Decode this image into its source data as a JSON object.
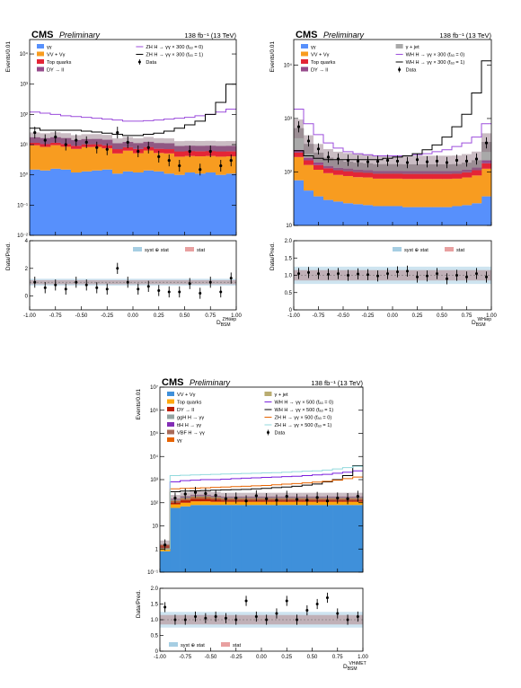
{
  "chart_data": [
    {
      "type": "bar",
      "cms_label": "CMS",
      "prelim_label": "Preliminary",
      "lumi_label": "138 fb⁻¹ (13 TeV)",
      "ylabel": "Events/0.01",
      "ratio_ylabel": "Data/Pred.",
      "xlabel_main": "D",
      "xlabel_sub": "BSM",
      "xlabel_sup": "ZHℓℓep",
      "log_y": true,
      "ylim": [
        0.01,
        30000
      ],
      "yticks": [
        {
          "v": 0.01,
          "t": "10⁻²"
        },
        {
          "v": 0.1,
          "t": "10⁻¹"
        },
        {
          "v": 1,
          "t": "10⁰"
        },
        {
          "v": 10,
          "t": "10¹"
        },
        {
          "v": 100,
          "t": "10²"
        },
        {
          "v": 1000,
          "t": "10³"
        },
        {
          "v": 10000,
          "t": "10⁴"
        }
      ],
      "ratio_ylim": [
        -1,
        4
      ],
      "ratio_yticks": [
        {
          "v": 0,
          "t": "0"
        },
        {
          "v": 2,
          "t": "2"
        },
        {
          "v": 4,
          "t": "4"
        }
      ],
      "xlim": [
        -1,
        1
      ],
      "xticks": [
        "-1.00",
        "-0.75",
        "-0.50",
        "-0.25",
        "0.00",
        "0.25",
        "0.50",
        "0.75",
        "1.00"
      ],
      "legend": {
        "stack": [
          {
            "name": "γγ",
            "color": "#5790fc"
          },
          {
            "name": "VV + Vγ",
            "color": "#f89c20"
          },
          {
            "name": "Top quarks",
            "color": "#e42536"
          },
          {
            "name": "DY → ll",
            "color": "#964a8b"
          }
        ],
        "lines": [
          {
            "name": "ZH H → γγ × 300 (fₐ₃ = 0)",
            "color": "#9c4ddc"
          },
          {
            "name": "ZH H → γγ × 300 (fₐ₃ = 1)",
            "color": "#000000"
          }
        ],
        "data": "Data",
        "ratio_syst": "syst ⊕ stat",
        "ratio_stat": "stat"
      },
      "stack_series": [
        {
          "name": "γγ",
          "color": "#5790fc",
          "values": [
            1.5,
            1.4,
            1.6,
            1.5,
            1.2,
            1.3,
            1.4,
            1.5,
            1.1,
            1.3,
            1.2,
            1.4,
            1.3,
            1.1,
            1.0,
            1.2,
            1.1,
            1.2,
            1.0,
            1.1
          ]
        },
        {
          "name": "VV + Vγ",
          "color": "#f89c20",
          "values": [
            8,
            7,
            8,
            7,
            6,
            7,
            7,
            6,
            4,
            5,
            4,
            5,
            4,
            4,
            3,
            3,
            3,
            3,
            3,
            3
          ]
        },
        {
          "name": "Top quarks",
          "color": "#e42536",
          "values": [
            2,
            2,
            2,
            2,
            2,
            2,
            2,
            2,
            2,
            2,
            2,
            2,
            2,
            2,
            2,
            2,
            2,
            2,
            2,
            2
          ]
        },
        {
          "name": "DY → ll",
          "color": "#964a8b",
          "values": [
            6,
            6,
            6,
            6,
            5,
            5,
            5,
            5,
            4,
            4,
            4,
            4,
            4,
            4,
            3,
            3,
            3,
            3,
            3,
            3
          ]
        }
      ],
      "signal_lines": [
        {
          "name": "ZH f0",
          "color": "#9c4ddc",
          "values": [
            120,
            110,
            100,
            90,
            85,
            80,
            75,
            70,
            65,
            60,
            60,
            62,
            65,
            70,
            75,
            80,
            90,
            100,
            120,
            150
          ]
        },
        {
          "name": "ZH f1",
          "color": "#000000",
          "values": [
            35,
            30,
            30,
            30,
            30,
            28,
            26,
            24,
            22,
            20,
            20,
            22,
            24,
            28,
            35,
            45,
            60,
            100,
            250,
            1000
          ]
        }
      ],
      "data_points": [
        25,
        14,
        18,
        10,
        14,
        12,
        8,
        7,
        25,
        12,
        6,
        8,
        4,
        3,
        2,
        6,
        1.5,
        6,
        2,
        3
      ],
      "ratio_points": [
        1.0,
        0.6,
        0.8,
        0.5,
        1.0,
        0.8,
        0.6,
        0.5,
        2.0,
        1.0,
        0.5,
        0.7,
        0.4,
        0.3,
        0.3,
        0.9,
        0.2,
        1.0,
        0.3,
        1.3
      ]
    },
    {
      "type": "bar",
      "cms_label": "CMS",
      "prelim_label": "Preliminary",
      "lumi_label": "138 fb⁻¹ (13 TeV)",
      "ylabel": "Events/0.01",
      "ratio_ylabel": "Data/Pred.",
      "xlabel_main": "D",
      "xlabel_sub": "BSM",
      "xlabel_sup": "WHℓep",
      "log_y": true,
      "ylim": [
        10,
        30000
      ],
      "yticks": [
        {
          "v": 10,
          "t": "10"
        },
        {
          "v": 100,
          "t": "10²"
        },
        {
          "v": 1000,
          "t": "10³"
        },
        {
          "v": 10000,
          "t": "10⁴"
        }
      ],
      "ratio_ylim": [
        0,
        2
      ],
      "ratio_yticks": [
        {
          "v": 0,
          "t": "0"
        },
        {
          "v": 0.5,
          "t": "0.5"
        },
        {
          "v": 1,
          "t": "1.0"
        },
        {
          "v": 1.5,
          "t": "1.5"
        },
        {
          "v": 2,
          "t": "2.0"
        }
      ],
      "xlim": [
        -1,
        1
      ],
      "xticks": [
        "-1.00",
        "-0.75",
        "-0.50",
        "-0.25",
        "0.00",
        "0.25",
        "0.50",
        "0.75",
        "1.00"
      ],
      "legend": {
        "stack": [
          {
            "name": "γγ",
            "color": "#5790fc"
          },
          {
            "name": "VV + Vγ",
            "color": "#f89c20"
          },
          {
            "name": "Top quarks",
            "color": "#e42536"
          },
          {
            "name": "DY → ll",
            "color": "#964a8b"
          }
        ],
        "stack2": [
          {
            "name": "γ + jet",
            "color": "#a9a9a9"
          }
        ],
        "lines": [
          {
            "name": "WH H → γγ × 300 (fₐ₃ = 0)",
            "color": "#9c4ddc"
          },
          {
            "name": "WH H → γγ × 300 (fₐ₃ = 1)",
            "color": "#000000"
          }
        ],
        "data": "Data",
        "ratio_syst": "syst ⊕ stat",
        "ratio_stat": "stat"
      },
      "stack_series": [
        {
          "name": "γγ",
          "color": "#5790fc",
          "values": [
            70,
            45,
            35,
            30,
            28,
            26,
            25,
            24,
            23,
            23,
            23,
            22,
            22,
            22,
            22,
            22,
            23,
            24,
            26,
            35
          ]
        },
        {
          "name": "VV + Vγ",
          "color": "#f89c20",
          "values": [
            120,
            90,
            75,
            65,
            60,
            58,
            55,
            55,
            52,
            52,
            52,
            52,
            52,
            52,
            52,
            52,
            52,
            55,
            60,
            80
          ]
        },
        {
          "name": "Top quarks",
          "color": "#e42536",
          "values": [
            40,
            30,
            25,
            22,
            20,
            20,
            20,
            19,
            19,
            19,
            19,
            19,
            19,
            19,
            19,
            19,
            19,
            20,
            22,
            30
          ]
        },
        {
          "name": "DY → ll",
          "color": "#964a8b",
          "values": [
            30,
            20,
            15,
            13,
            12,
            12,
            11,
            11,
            11,
            11,
            11,
            11,
            11,
            11,
            11,
            11,
            11,
            12,
            13,
            20
          ]
        },
        {
          "name": "γ + jet",
          "color": "#a9a9a9",
          "values": [
            400,
            150,
            80,
            55,
            45,
            40,
            38,
            36,
            35,
            35,
            35,
            35,
            35,
            35,
            35,
            35,
            35,
            38,
            45,
            200
          ]
        }
      ],
      "signal_lines": [
        {
          "name": "WH f0",
          "color": "#9c4ddc",
          "values": [
            1500,
            800,
            500,
            350,
            280,
            240,
            220,
            210,
            200,
            200,
            200,
            200,
            210,
            220,
            240,
            260,
            300,
            350,
            450,
            800
          ]
        },
        {
          "name": "WH f1",
          "color": "#000000",
          "values": [
            250,
            200,
            180,
            170,
            170,
            170,
            170,
            170,
            170,
            180,
            190,
            200,
            220,
            260,
            320,
            450,
            700,
            1200,
            3000,
            12000
          ]
        }
      ],
      "data_points": [
        700,
        380,
        270,
        190,
        175,
        165,
        160,
        155,
        158,
        165,
        160,
        150,
        170,
        155,
        160,
        150,
        165,
        160,
        175,
        350
      ],
      "ratio_points": [
        1.05,
        1.08,
        1.05,
        1.03,
        1.05,
        1.0,
        1.04,
        1.02,
        0.98,
        1.05,
        1.1,
        1.12,
        0.95,
        0.98,
        1.05,
        0.9,
        1.0,
        0.95,
        1.05,
        0.95
      ]
    },
    {
      "type": "bar",
      "cms_label": "CMS",
      "prelim_label": "Preliminary",
      "lumi_label": "138 fb⁻¹ (13 TeV)",
      "ylabel": "Events/0.01",
      "ratio_ylabel": "Data/Pred.",
      "xlabel_main": "D",
      "xlabel_sub": "BSM",
      "xlabel_sup": "VHℓMET",
      "log_y": true,
      "ylim": [
        0.1,
        10000000
      ],
      "yticks": [
        {
          "v": 0.1,
          "t": "10⁻¹"
        },
        {
          "v": 1,
          "t": "1"
        },
        {
          "v": 10,
          "t": "10"
        },
        {
          "v": 100,
          "t": "10²"
        },
        {
          "v": 1000,
          "t": "10³"
        },
        {
          "v": 10000,
          "t": "10⁴"
        },
        {
          "v": 100000,
          "t": "10⁵"
        },
        {
          "v": 1000000,
          "t": "10⁶"
        },
        {
          "v": 10000000,
          "t": "10⁷"
        }
      ],
      "ratio_ylim": [
        0,
        2
      ],
      "ratio_yticks": [
        {
          "v": 0,
          "t": "0"
        },
        {
          "v": 0.5,
          "t": "0.5"
        },
        {
          "v": 1,
          "t": "1.0"
        },
        {
          "v": 1.5,
          "t": "1.5"
        },
        {
          "v": 2,
          "t": "2.0"
        }
      ],
      "xlim": [
        -1,
        1
      ],
      "xticks": [
        "-1.00",
        "-0.75",
        "-0.50",
        "-0.25",
        "0.00",
        "0.25",
        "0.50",
        "0.75",
        "1.00"
      ],
      "legend": {
        "stack": [
          {
            "name": "VV + Vγ",
            "color": "#3f90da"
          },
          {
            "name": "Top quarks",
            "color": "#ffa90e"
          },
          {
            "name": "DY → ll",
            "color": "#bd1f01"
          },
          {
            "name": "ggH H → γγ",
            "color": "#94a4a2"
          },
          {
            "name": "ttH H → γγ",
            "color": "#832db6"
          },
          {
            "name": "VBF H → γγ",
            "color": "#a96b59"
          },
          {
            "name": "γγ",
            "color": "#e76300"
          }
        ],
        "stack2": [
          {
            "name": "γ + jet",
            "color": "#b9ac70"
          }
        ],
        "lines": [
          {
            "name": "WH H → γγ × 500 (fₐ₃ = 0)",
            "color": "#7a21dd"
          },
          {
            "name": "WH H → γγ × 500 (fₐ₃ = 1)",
            "color": "#000000"
          },
          {
            "name": "ZH H → γγ × 500 (fₐ₃ = 0)",
            "color": "#e76300"
          },
          {
            "name": "ZH H → γγ × 500 (fₐ₃ = 1)",
            "color": "#92dadd"
          }
        ],
        "data": "Data",
        "ratio_syst": "syst ⊕ stat",
        "ratio_stat": "stat"
      },
      "stack_series": [
        {
          "name": "VV + Vγ",
          "color": "#3f90da",
          "values": [
            0.8,
            60,
            70,
            80,
            80,
            80,
            80,
            80,
            80,
            80,
            80,
            80,
            80,
            80,
            80,
            80,
            80,
            80,
            80,
            80
          ]
        },
        {
          "name": "Top quarks",
          "color": "#ffa90e",
          "values": [
            0.3,
            25,
            30,
            35,
            35,
            30,
            30,
            30,
            30,
            30,
            30,
            30,
            30,
            30,
            30,
            30,
            30,
            30,
            30,
            30
          ]
        },
        {
          "name": "DY → ll",
          "color": "#bd1f01",
          "values": [
            0.3,
            20,
            30,
            35,
            35,
            30,
            25,
            25,
            25,
            25,
            25,
            25,
            25,
            25,
            25,
            25,
            25,
            25,
            25,
            25
          ]
        },
        {
          "name": "γγ",
          "color": "#e76300",
          "values": [
            0.1,
            15,
            20,
            25,
            25,
            20,
            15,
            15,
            15,
            15,
            15,
            15,
            15,
            15,
            15,
            15,
            15,
            15,
            15,
            15
          ]
        },
        {
          "name": "γ + jet",
          "color": "#b9ac70",
          "values": [
            0.05,
            10,
            15,
            15,
            15,
            15,
            10,
            10,
            10,
            10,
            10,
            10,
            10,
            10,
            10,
            10,
            10,
            10,
            10,
            10
          ]
        },
        {
          "name": "ggH H → γγ",
          "color": "#94a4a2",
          "values": [
            0.02,
            8,
            10,
            12,
            12,
            10,
            10,
            10,
            10,
            10,
            10,
            10,
            10,
            10,
            10,
            10,
            10,
            10,
            10,
            10
          ]
        },
        {
          "name": "ttH H → γγ",
          "color": "#832db6",
          "values": [
            0.02,
            6,
            8,
            10,
            10,
            8,
            8,
            8,
            8,
            8,
            8,
            8,
            8,
            8,
            8,
            8,
            8,
            8,
            8,
            8
          ]
        },
        {
          "name": "VBF H → γγ",
          "color": "#a96b59",
          "values": [
            0.02,
            6,
            8,
            10,
            10,
            8,
            8,
            8,
            8,
            8,
            8,
            8,
            8,
            8,
            8,
            8,
            8,
            8,
            8,
            8
          ]
        }
      ],
      "signal_lines": [
        {
          "name": "WH f0",
          "color": "#7a21dd",
          "values": [
            1,
            800,
            900,
            950,
            1000,
            1000,
            1050,
            1100,
            1150,
            1200,
            1250,
            1300,
            1350,
            1400,
            1500,
            1600,
            1700,
            1900,
            2100,
            2400
          ]
        },
        {
          "name": "WH f1",
          "color": "#000000",
          "values": [
            1,
            300,
            320,
            330,
            340,
            350,
            360,
            370,
            380,
            400,
            420,
            450,
            480,
            520,
            580,
            650,
            800,
            1000,
            1500,
            4000
          ]
        },
        {
          "name": "ZH f0",
          "color": "#e76300",
          "values": [
            1,
            400,
            420,
            430,
            440,
            460,
            480,
            500,
            520,
            540,
            560,
            600,
            640,
            680,
            720,
            780,
            850,
            950,
            1100,
            1300
          ]
        },
        {
          "name": "ZH f1",
          "color": "#92dadd",
          "values": [
            1,
            1500,
            1550,
            1600,
            1650,
            1700,
            1750,
            1800,
            1850,
            1900,
            1950,
            2000,
            2100,
            2200,
            2300,
            2400,
            2600,
            2900,
            3300,
            3800
          ]
        }
      ],
      "data_points": [
        1.5,
        160,
        240,
        280,
        250,
        210,
        150,
        160,
        120,
        200,
        150,
        130,
        190,
        140,
        130,
        170,
        120,
        160,
        150,
        190
      ],
      "ratio_points": [
        1.4,
        1.0,
        1.0,
        1.1,
        1.05,
        1.1,
        1.05,
        1.0,
        1.6,
        1.1,
        1.0,
        1.2,
        1.6,
        1.0,
        1.3,
        1.5,
        1.7,
        1.2,
        1.0,
        1.1
      ]
    }
  ]
}
